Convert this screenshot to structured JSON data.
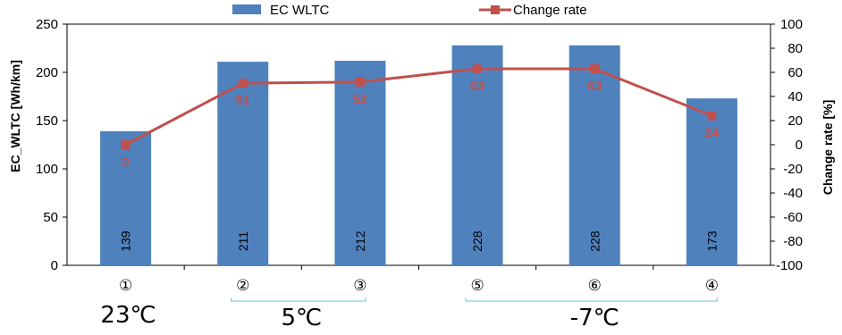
{
  "chart_data": {
    "type": "bar",
    "categories": [
      "①",
      "②",
      "③",
      "⑤",
      "⑥",
      "④"
    ],
    "series": [
      {
        "name": "EC WLTC",
        "type": "bar",
        "axis": "left",
        "color": "#4F81BD",
        "values": [
          139,
          211,
          212,
          228,
          228,
          173
        ],
        "labels": [
          "139",
          "211",
          "212",
          "228",
          "228",
          "173"
        ]
      },
      {
        "name": "Change rate",
        "type": "line",
        "axis": "right",
        "color": "#C0504D",
        "values": [
          0,
          51,
          52,
          63,
          63,
          24
        ],
        "labels": [
          "0",
          "51",
          "52",
          "63",
          "63",
          "24"
        ]
      }
    ],
    "ylabel": "EC_WLTC [Wh/km]",
    "y2label": "Change rate [%]",
    "ylim": [
      0,
      250
    ],
    "y2lim": [
      -100,
      100
    ],
    "yticks": [
      "0",
      "50",
      "100",
      "150",
      "200",
      "250"
    ],
    "y2ticks": [
      "-100",
      "-80",
      "-60",
      "-40",
      "-20",
      "0",
      "20",
      "40",
      "60",
      "80",
      "100"
    ],
    "legend_position": "top",
    "groups": [
      {
        "label": "23℃",
        "from": 0,
        "to": 0,
        "bracket": false
      },
      {
        "label": "5℃",
        "from": 1,
        "to": 2,
        "bracket": true
      },
      {
        "label": "-7℃",
        "from": 3,
        "to": 5,
        "bracket": true
      }
    ],
    "grid": false,
    "bracket_color": "#9DD3E8"
  }
}
